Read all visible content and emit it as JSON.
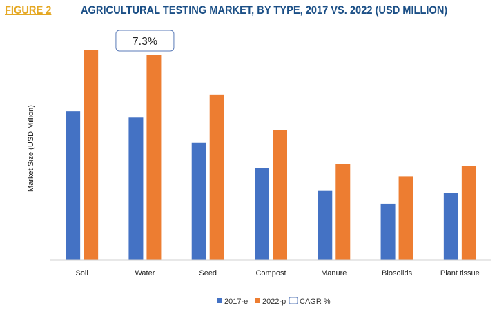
{
  "header": {
    "figure_label": "FIGURE 2",
    "title": "AGRICULTURAL TESTING MARKET, BY TYPE, 2017 VS. 2022 (USD MILLION)"
  },
  "colors": {
    "figure_label": "#e5a823",
    "title": "#1b4f86",
    "series_2017": "#4472c4",
    "series_2022": "#ed7d31",
    "callout_border": "#5b7bb8"
  },
  "chart_data": {
    "type": "bar",
    "title": "AGRICULTURAL TESTING MARKET, BY TYPE, 2017 VS. 2022 (USD MILLION)",
    "xlabel": "",
    "ylabel": "Market Size (USD Million)",
    "ylim": [
      0,
      100
    ],
    "y_tick_labels_shown": false,
    "grid": false,
    "legend_position": "bottom",
    "categories": [
      "Soil",
      "Water",
      "Seed",
      "Compost",
      "Manure",
      "Biosolids",
      "Plant tissue"
    ],
    "series": [
      {
        "name": "2017-e",
        "color": "#4472c4",
        "values": [
          71,
          68,
          56,
          44,
          33,
          27,
          32
        ]
      },
      {
        "name": "2022-p",
        "color": "#ed7d31",
        "values": [
          100,
          98,
          79,
          62,
          46,
          40,
          45
        ]
      }
    ],
    "annotations": [
      {
        "type": "callout",
        "text": "7.3%",
        "category": "Water"
      }
    ],
    "legend": [
      {
        "label": "2017-e",
        "marker": "filled-square",
        "color": "#4472c4"
      },
      {
        "label": "2022-p",
        "marker": "filled-square",
        "color": "#ed7d31"
      },
      {
        "label": "CAGR %",
        "marker": "outlined-box",
        "color": "#5b7bb8"
      }
    ]
  }
}
